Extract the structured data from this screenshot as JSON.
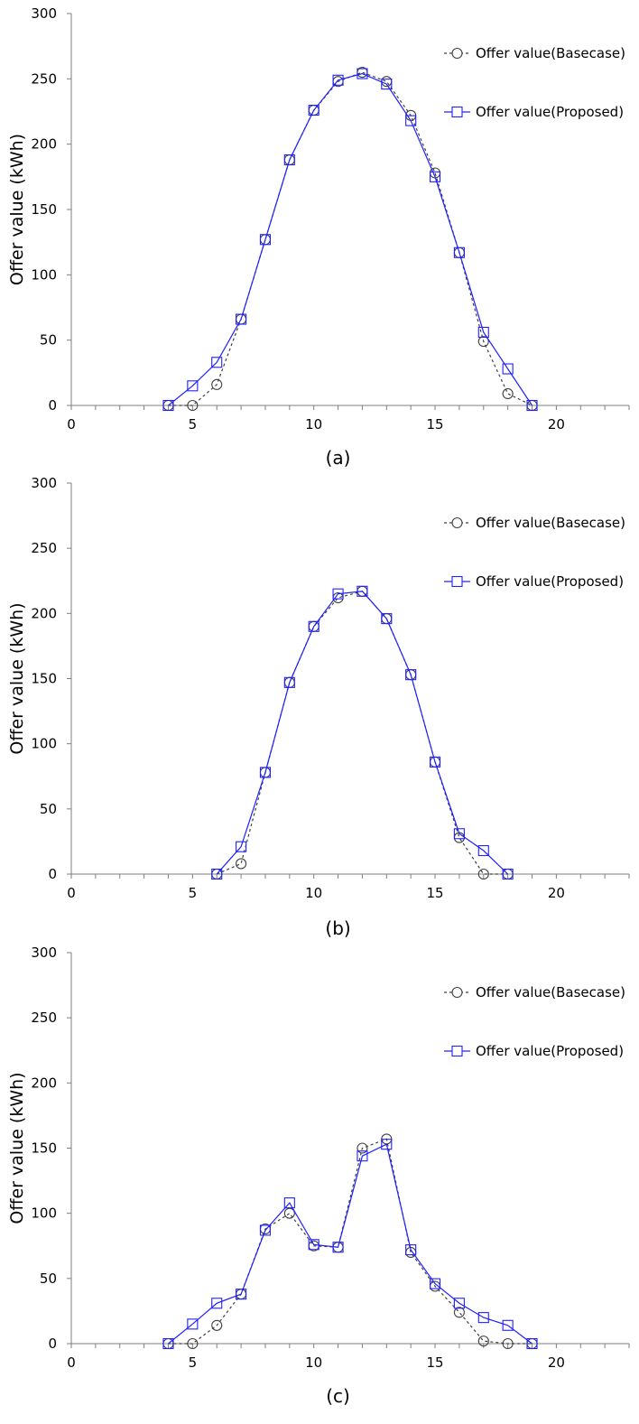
{
  "chart_data": [
    {
      "type": "line",
      "caption": "(a)",
      "ylabel": "Offer value (kWh)",
      "xlabel": "",
      "xlim": [
        0,
        23
      ],
      "ylim": [
        0,
        300
      ],
      "xticks": [
        0,
        5,
        10,
        15,
        20
      ],
      "yticks": [
        0,
        50,
        100,
        150,
        200,
        250,
        300
      ],
      "grid": false,
      "legend_position": "top-right",
      "series": [
        {
          "name": "Offer value(Basecase)",
          "color": "#404040",
          "line": "dashed",
          "marker": "circle",
          "x": [
            4,
            5,
            6,
            7,
            8,
            9,
            10,
            11,
            12,
            13,
            14,
            15,
            16,
            17,
            18,
            19
          ],
          "y": [
            0,
            0,
            16,
            66,
            127,
            188,
            226,
            248,
            255,
            248,
            222,
            178,
            117,
            49,
            9,
            0
          ]
        },
        {
          "name": "Offer value(Proposed)",
          "color": "#2020ff",
          "line": "solid",
          "marker": "square",
          "x": [
            4,
            5,
            6,
            7,
            8,
            9,
            10,
            11,
            12,
            13,
            14,
            15,
            16,
            17,
            18,
            19
          ],
          "y": [
            0,
            15,
            33,
            66,
            127,
            188,
            226,
            249,
            254,
            246,
            218,
            175,
            117,
            56,
            28,
            0
          ]
        }
      ]
    },
    {
      "type": "line",
      "caption": "(b)",
      "ylabel": "Offer value (kWh)",
      "xlabel": "",
      "xlim": [
        0,
        23
      ],
      "ylim": [
        0,
        300
      ],
      "xticks": [
        0,
        5,
        10,
        15,
        20
      ],
      "yticks": [
        0,
        50,
        100,
        150,
        200,
        250,
        300
      ],
      "grid": false,
      "legend_position": "top-right",
      "series": [
        {
          "name": "Offer value(Basecase)",
          "color": "#404040",
          "line": "dashed",
          "marker": "circle",
          "x": [
            6,
            7,
            8,
            9,
            10,
            11,
            12,
            13,
            14,
            15,
            16,
            17,
            18
          ],
          "y": [
            0,
            8,
            78,
            147,
            190,
            212,
            217,
            196,
            153,
            86,
            28,
            0,
            0
          ]
        },
        {
          "name": "Offer value(Proposed)",
          "color": "#2020ff",
          "line": "solid",
          "marker": "square",
          "x": [
            6,
            7,
            8,
            9,
            10,
            11,
            12,
            13,
            14,
            15,
            16,
            17,
            18
          ],
          "y": [
            0,
            21,
            78,
            147,
            190,
            215,
            217,
            196,
            153,
            86,
            31,
            18,
            0
          ]
        }
      ]
    },
    {
      "type": "line",
      "caption": "(c)",
      "ylabel": "Offer value (kWh)",
      "xlabel": "",
      "xlim": [
        0,
        23
      ],
      "ylim": [
        0,
        300
      ],
      "xticks": [
        0,
        5,
        10,
        15,
        20
      ],
      "yticks": [
        0,
        50,
        100,
        150,
        200,
        250,
        300
      ],
      "grid": false,
      "legend_position": "top-right",
      "series": [
        {
          "name": "Offer value(Basecase)",
          "color": "#404040",
          "line": "dashed",
          "marker": "circle",
          "x": [
            4,
            5,
            6,
            7,
            8,
            9,
            10,
            11,
            12,
            13,
            14,
            15,
            16,
            17,
            18,
            19
          ],
          "y": [
            0,
            0,
            14,
            38,
            88,
            100,
            75,
            74,
            150,
            157,
            70,
            44,
            24,
            2,
            0,
            0
          ]
        },
        {
          "name": "Offer value(Proposed)",
          "color": "#2020ff",
          "line": "solid",
          "marker": "square",
          "x": [
            4,
            5,
            6,
            7,
            8,
            9,
            10,
            11,
            12,
            13,
            14,
            15,
            16,
            17,
            18,
            19
          ],
          "y": [
            0,
            15,
            31,
            38,
            87,
            108,
            76,
            74,
            144,
            153,
            72,
            46,
            31,
            20,
            14,
            0
          ]
        }
      ]
    }
  ]
}
